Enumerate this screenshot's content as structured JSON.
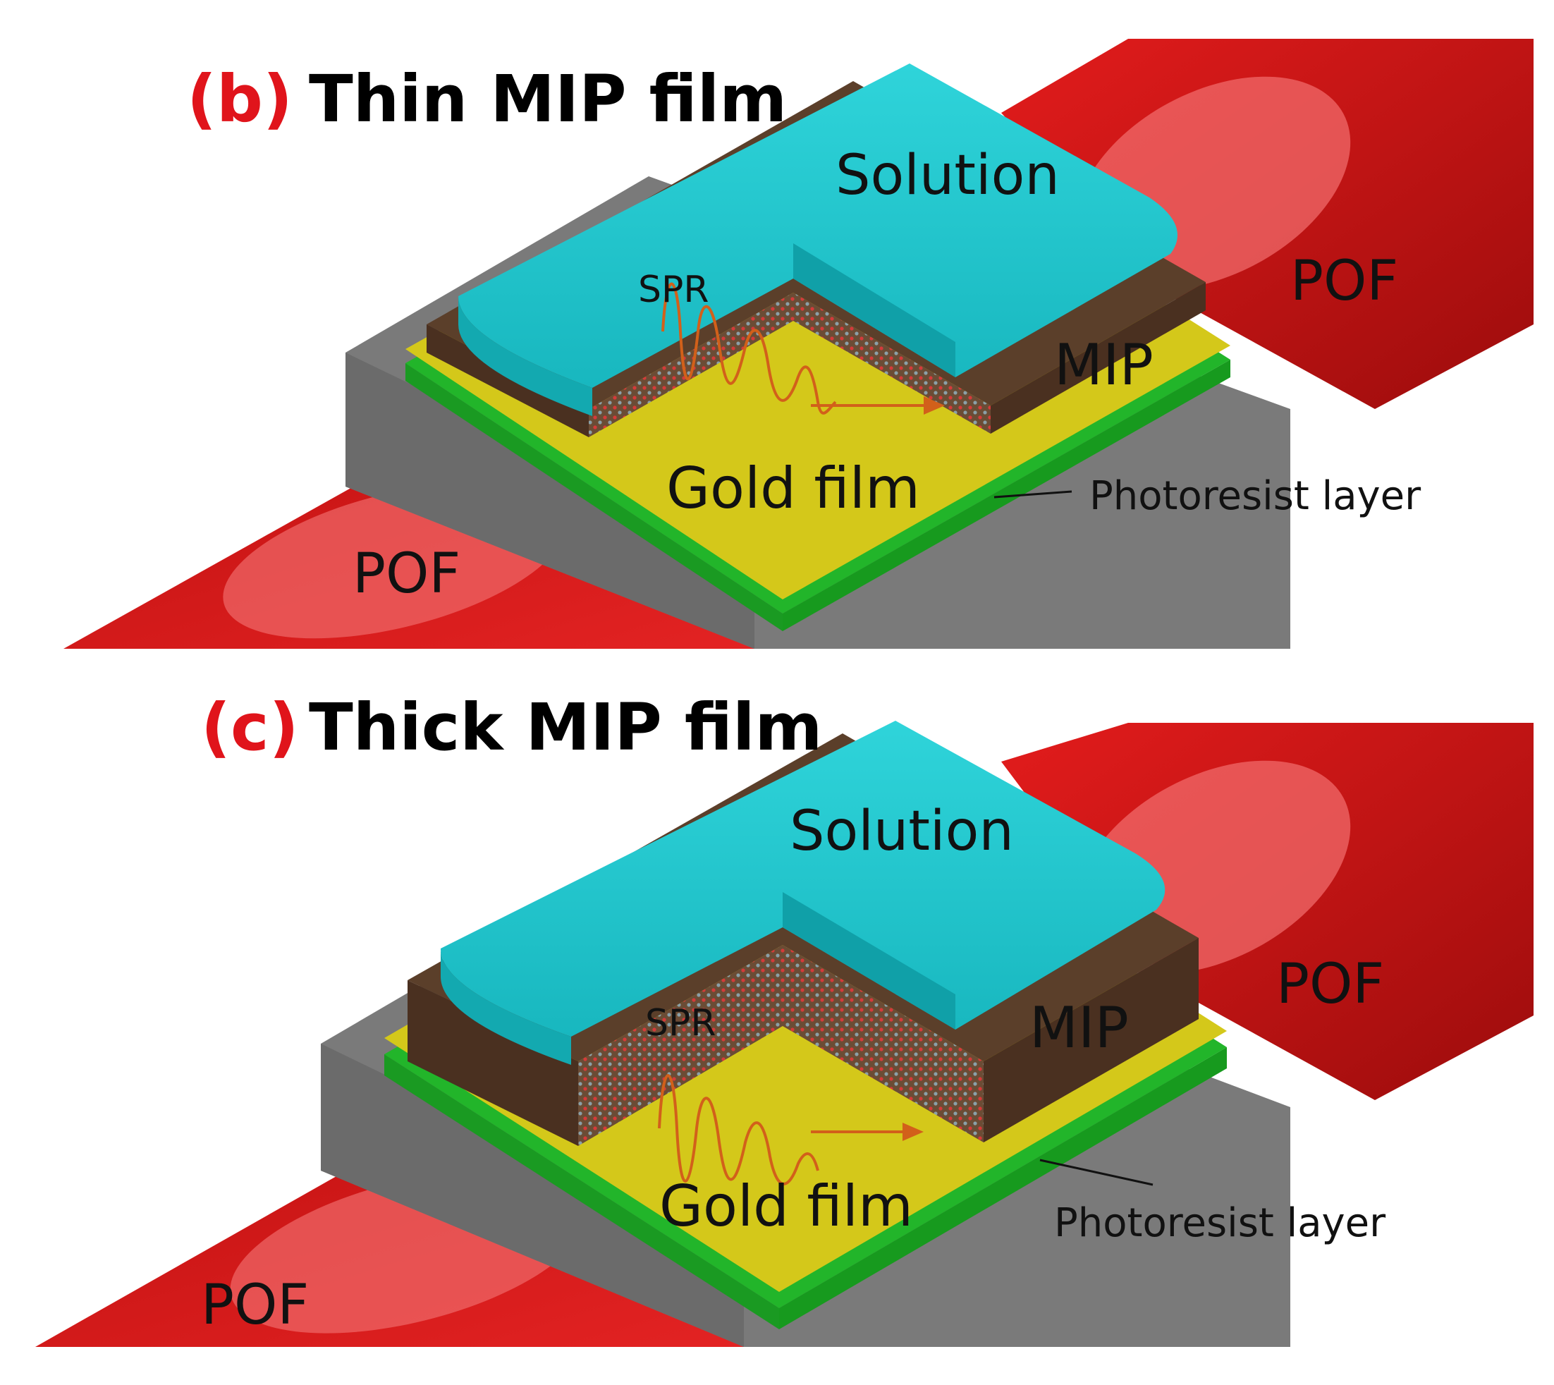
{
  "panels": [
    {
      "letter": "(b)",
      "title": "Thin MIP film",
      "labels": {
        "solution": "Solution",
        "spr": "SPR",
        "mip": "MIP",
        "gold": "Gold film",
        "photoresist": "Photoresist layer",
        "pof_left": "POF",
        "pof_right": "POF"
      }
    },
    {
      "letter": "(c)",
      "title": "Thick MIP film",
      "labels": {
        "solution": "Solution",
        "spr": "SPR",
        "mip": "MIP",
        "gold": "Gold film",
        "photoresist": "Photoresist layer",
        "pof_left": "POF",
        "pof_right": "POF"
      }
    }
  ],
  "colors": {
    "title_letter": "#e0141b",
    "fiber": "#d91a1a",
    "fiber_core": "#f06a6a",
    "block": "#7a7a7a",
    "gold": "#d4c81a",
    "photoresist": "#22b52a",
    "mip": "#5b3f2a",
    "solution": "#22c8cf",
    "wave": "#d2601a"
  }
}
